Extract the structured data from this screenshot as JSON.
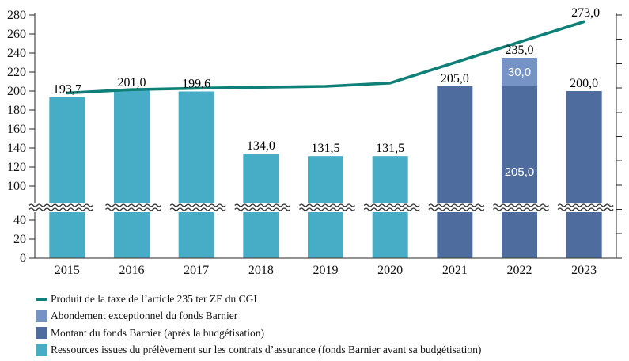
{
  "chart_data": {
    "type": "combo-stacked-bar-line",
    "title": "",
    "categories": [
      "2015",
      "2016",
      "2017",
      "2018",
      "2019",
      "2020",
      "2021",
      "2022",
      "2023"
    ],
    "y_axis": {
      "tick_values": [
        0,
        20,
        40,
        100,
        120,
        140,
        160,
        180,
        200,
        220,
        240,
        260,
        280
      ],
      "tick_labels": [
        "0",
        "20",
        "40",
        "100",
        "120",
        "140",
        "160",
        "180",
        "200",
        "220",
        "240",
        "260",
        "280"
      ],
      "axis_break_between": [
        40,
        100
      ],
      "grid": false
    },
    "bar_series": [
      {
        "name": "Ressources issues du prélèvement sur les contrats d’assurance (fonds Barnier avant sa budgétisation)",
        "color": "#47ACC5",
        "values": [
          193.7,
          201.0,
          199.6,
          134.0,
          131.5,
          131.5,
          null,
          null,
          null
        ],
        "inside_labels": [
          null,
          null,
          null,
          null,
          null,
          null,
          null,
          null,
          null
        ]
      },
      {
        "name": "Montant du fonds Barnier (après la budgétisation)",
        "color": "#4E6D9E",
        "values": [
          null,
          null,
          null,
          null,
          null,
          null,
          205.0,
          205.0,
          200.0
        ],
        "inside_labels": [
          null,
          null,
          null,
          null,
          null,
          null,
          null,
          "205,0",
          null
        ]
      },
      {
        "name": "Abondement exceptionnel du fonds Barnier",
        "color": "#7593C5",
        "values": [
          null,
          null,
          null,
          null,
          null,
          null,
          null,
          30.0,
          null
        ],
        "inside_labels": [
          null,
          null,
          null,
          null,
          null,
          null,
          null,
          "30,0",
          null
        ]
      }
    ],
    "bar_total_labels": [
      "193,7",
      "201,0",
      "199,6",
      "134,0",
      "131,5",
      "131,5",
      "205,0",
      "235,0",
      "200,0"
    ],
    "line_series": {
      "name": "Produit de la taxe de l’article 235 ter ZE du CGI",
      "color": "#0F8077",
      "values": [
        198,
        201.5,
        203,
        204,
        205,
        208.5,
        230,
        251.5,
        273
      ],
      "end_label": "273,0"
    },
    "legend": [
      {
        "label": "Produit de la taxe de l’article 235 ter ZE du CGI",
        "marker": "line",
        "color": "#0F8077"
      },
      {
        "label": "Abondement exceptionnel du fonds Barnier",
        "marker": "square",
        "color": "#7593C5"
      },
      {
        "label": "Montant du fonds Barnier (après la budgétisation)",
        "marker": "square",
        "color": "#4E6D9E"
      },
      {
        "label": "Ressources issues du prélèvement sur les contrats d’assurance (fonds Barnier avant sa budgétisation)",
        "marker": "square",
        "color": "#47ACC5"
      }
    ],
    "colors": {
      "axis": "#262626",
      "break_wave": "#3a3a3a",
      "background": "#ffffff"
    }
  }
}
